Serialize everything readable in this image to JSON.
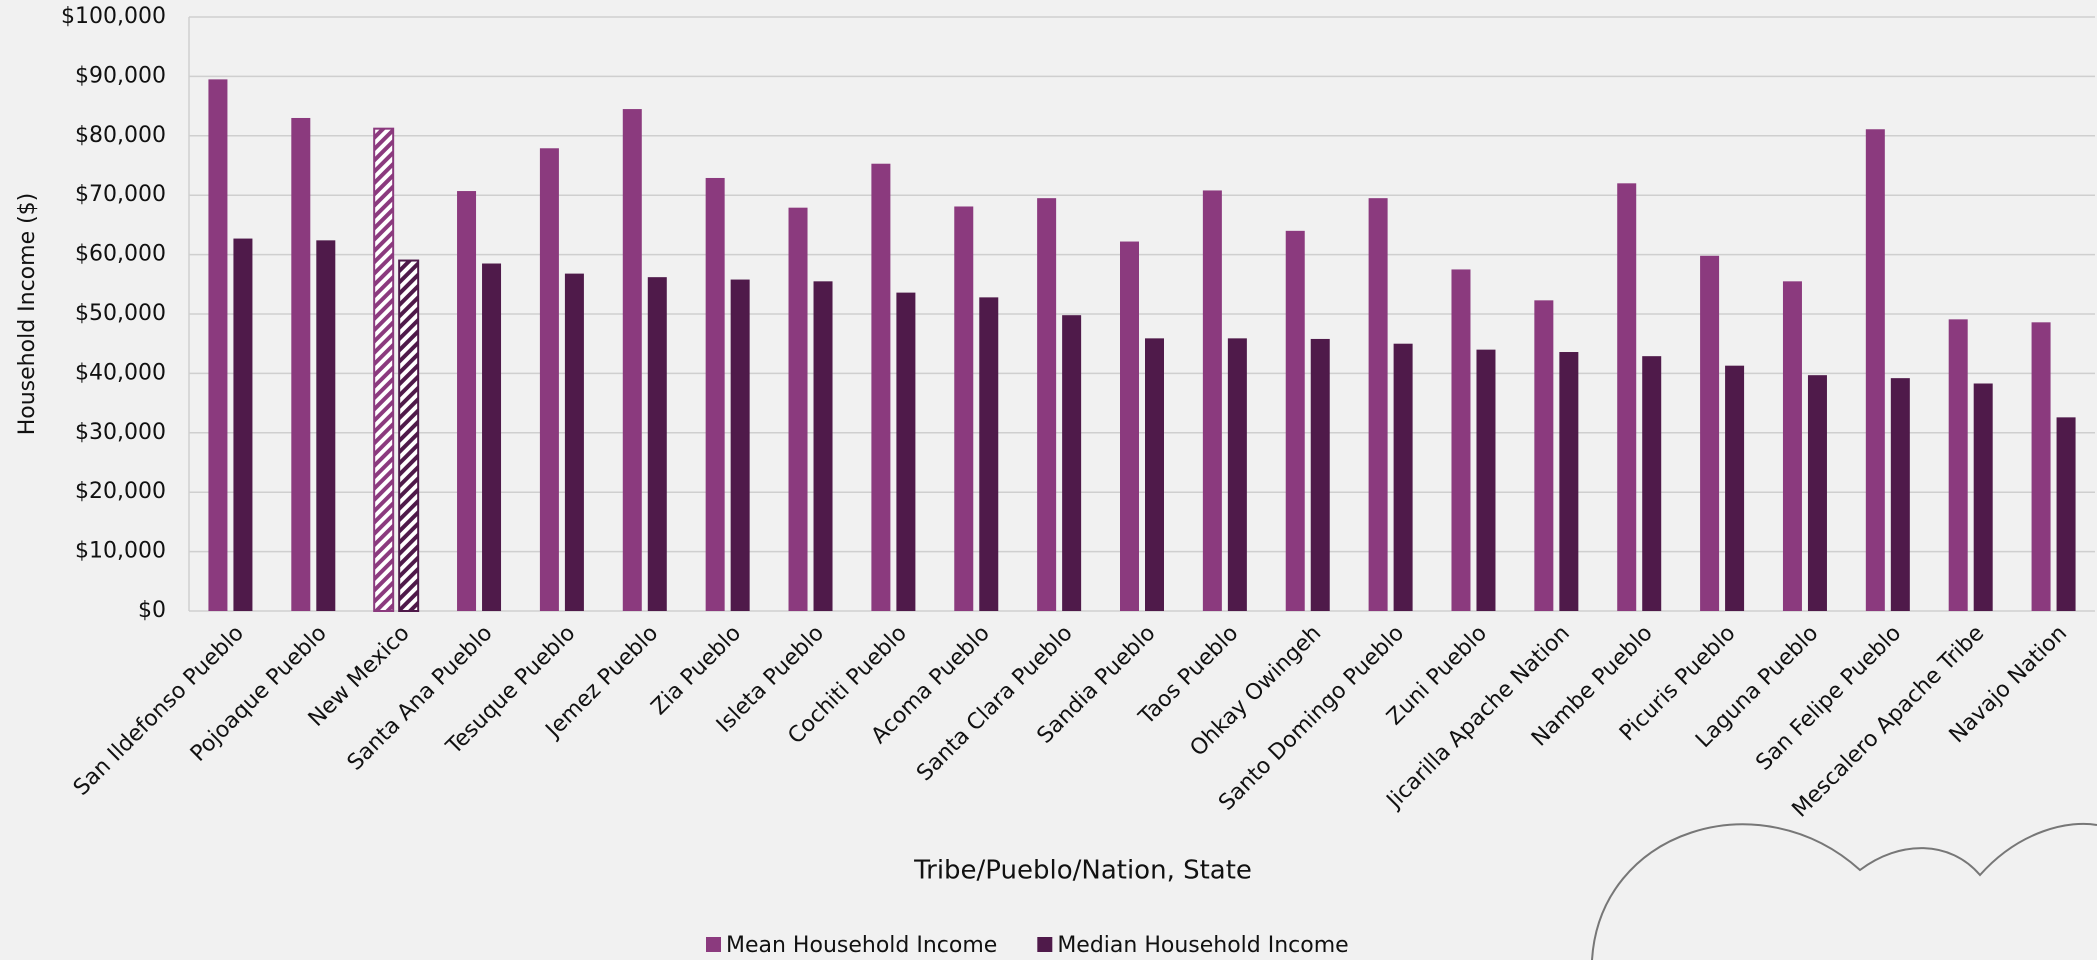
{
  "chart_data": {
    "type": "bar",
    "y_label": "Household Income ($)",
    "x_label": "Tribe/Pueblo/Nation, State",
    "categories": [
      "San Ildefonso Pueblo",
      "Pojoaque Pueblo",
      "New Mexico",
      "Santa Ana Pueblo",
      "Tesuque Pueblo",
      "Jemez Pueblo",
      "Zia Pueblo",
      "Isleta Pueblo",
      "Cochiti Pueblo",
      "Acoma Pueblo",
      "Santa Clara Pueblo",
      "Sandia Pueblo",
      "Taos Pueblo",
      "Ohkay Owingeh",
      "Santo Domingo Pueblo",
      "Zuni Pueblo",
      "Jicarilla Apache Nation",
      "Nambe Pueblo",
      "Picuris Pueblo",
      "Laguna Pueblo",
      "San Felipe Pueblo",
      "Mescalero Apache Tribe",
      "Navajo Nation"
    ],
    "series": [
      {
        "name": "Mean Household Income",
        "color": "#8b3a7e",
        "values": [
          89500,
          83000,
          81200,
          70700,
          77900,
          84500,
          72900,
          67900,
          75300,
          68100,
          69500,
          62200,
          70800,
          64000,
          69500,
          57500,
          52300,
          72000,
          59800,
          55500,
          81100,
          49100,
          48600
        ]
      },
      {
        "name": "Median Household Income",
        "color": "#4f1a4a",
        "values": [
          62700,
          62400,
          59000,
          58500,
          56800,
          56200,
          55800,
          55500,
          53600,
          52800,
          49800,
          45900,
          45900,
          45800,
          45000,
          44000,
          43600,
          42900,
          41300,
          39700,
          39200,
          38300,
          32600
        ]
      }
    ],
    "hatched_category_index": 2,
    "ylim": [
      0,
      100000
    ],
    "yticks": [
      {
        "value": 0,
        "label": "$0"
      },
      {
        "value": 10000,
        "label": "$10,000"
      },
      {
        "value": 20000,
        "label": "$20,000"
      },
      {
        "value": 30000,
        "label": "$30,000"
      },
      {
        "value": 40000,
        "label": "$40,000"
      },
      {
        "value": 50000,
        "label": "$50,000"
      },
      {
        "value": 60000,
        "label": "$60,000"
      },
      {
        "value": 70000,
        "label": "$70,000"
      },
      {
        "value": 80000,
        "label": "$80,000"
      },
      {
        "value": 90000,
        "label": "$90,000"
      },
      {
        "value": 100000,
        "label": "$100,000"
      }
    ],
    "grid": true,
    "legend": "bottom"
  }
}
